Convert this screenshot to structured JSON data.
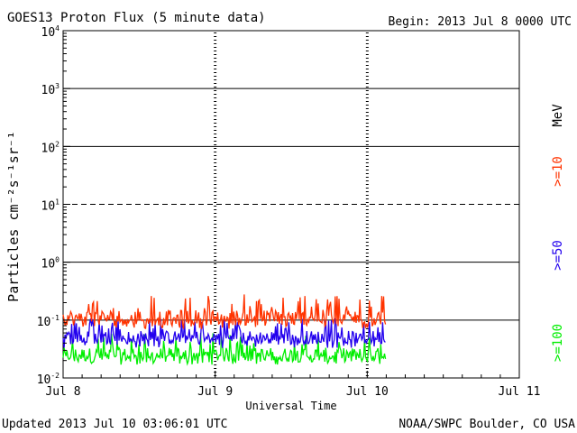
{
  "header": {
    "title": "GOES13 Proton Flux (5 minute data)",
    "begin": "Begin: 2013 Jul 8 0000 UTC"
  },
  "footer": {
    "updated": "Updated 2013 Jul 10 03:06:01 UTC",
    "credit": "NOAA/SWPC Boulder, CO USA"
  },
  "chart_data": {
    "type": "line",
    "title": "GOES13 Proton Flux (5 minute data)",
    "xlabel": "Universal Time",
    "ylabel": "Particles cm⁻²s⁻¹sr⁻¹",
    "y_scale": "log",
    "ylim": [
      0.01,
      10000
    ],
    "xlim": [
      "2013-07-08",
      "2013-07-11"
    ],
    "x_ticks": [
      {
        "label": "Jul 8",
        "day": 0
      },
      {
        "label": "Jul 9",
        "day": 1
      },
      {
        "label": "Jul 10",
        "day": 2
      },
      {
        "label": "Jul 11",
        "day": 3
      }
    ],
    "y_ticks": [
      {
        "exp": -2,
        "label": "10",
        "sup": "-2"
      },
      {
        "exp": -1,
        "label": "10",
        "sup": "-1"
      },
      {
        "exp": 0,
        "label": "10",
        "sup": "0"
      },
      {
        "exp": 1,
        "label": "10",
        "sup": "1"
      },
      {
        "exp": 2,
        "label": "10",
        "sup": "2"
      },
      {
        "exp": 3,
        "label": "10",
        "sup": "3"
      },
      {
        "exp": 4,
        "label": "10",
        "sup": "4"
      }
    ],
    "solid_gridlines": [
      0.1,
      1,
      100,
      1000
    ],
    "dashed_gridlines": [
      10
    ],
    "data_end_day": 2.12,
    "legend": {
      "unit": "MeV",
      "placement": "right"
    },
    "series": [
      {
        "name": ">=10",
        "color": "#ff3300",
        "typical": 0.11,
        "min": 0.07,
        "max": 0.28
      },
      {
        "name": ">=50",
        "color": "#2200ee",
        "typical": 0.05,
        "min": 0.033,
        "max": 0.11
      },
      {
        "name": ">=100",
        "color": "#00ee00",
        "typical": 0.025,
        "min": 0.017,
        "max": 0.06
      }
    ]
  }
}
